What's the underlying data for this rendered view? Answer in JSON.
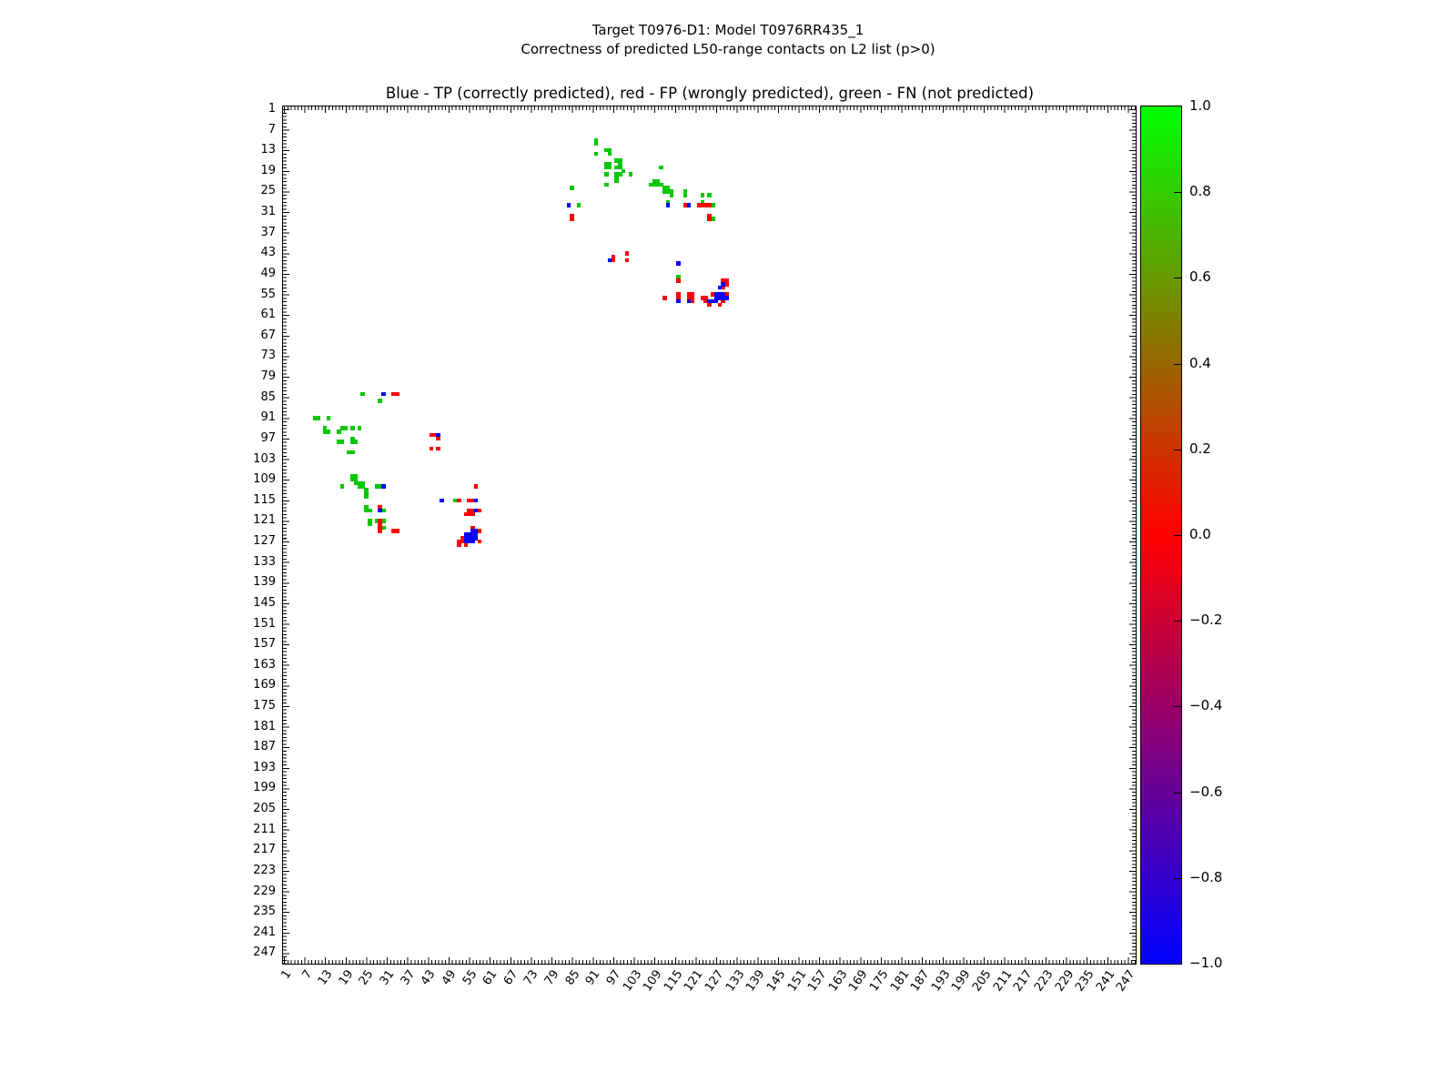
{
  "title_line1": "Target T0976-D1: Model T0976RR435_1",
  "title_line2": "Correctness of predicted L50-range contacts on L2 list (p>0)",
  "axes_title": "Blue - TP (correctly predicted), red - FP (wrongly predicted), green - FN (not predicted)",
  "colors": {
    "TP": "#0000ff",
    "FP": "#ff0000",
    "FN": "#00c800"
  },
  "chart_data": {
    "type": "scatter",
    "description": "Residue-residue contact map; squares mark predicted/native contacts by correctness class",
    "x_range": [
      1,
      250
    ],
    "y_range": [
      1,
      250
    ],
    "y_axis_inverted": true,
    "grid": false,
    "x_ticks": [
      1,
      7,
      13,
      19,
      25,
      31,
      37,
      43,
      49,
      55,
      61,
      67,
      73,
      79,
      85,
      91,
      97,
      103,
      109,
      115,
      121,
      127,
      133,
      139,
      145,
      151,
      157,
      163,
      169,
      175,
      181,
      187,
      193,
      199,
      205,
      211,
      217,
      223,
      229,
      235,
      241,
      247
    ],
    "y_ticks": [
      1,
      7,
      13,
      19,
      25,
      31,
      37,
      43,
      49,
      55,
      61,
      67,
      73,
      79,
      85,
      91,
      97,
      103,
      109,
      115,
      121,
      127,
      133,
      139,
      145,
      151,
      157,
      163,
      169,
      175,
      181,
      187,
      193,
      199,
      205,
      211,
      217,
      223,
      229,
      235,
      241,
      247
    ],
    "colorbar": {
      "labels": [
        "1.0",
        "0.8",
        "0.6",
        "0.4",
        "0.2",
        "0.0",
        "−0.2",
        "−0.4",
        "−0.6",
        "−0.8",
        "−1.0"
      ],
      "top_value": 1.0,
      "bottom_value": -1.0,
      "top_color": "#00ff00",
      "mid_color": "#ff0000",
      "bottom_color": "#0000ff"
    },
    "series": [
      {
        "name": "FN",
        "label": "green - FN (not predicted)",
        "points": [
          [
            92,
            10
          ],
          [
            92,
            11
          ],
          [
            92,
            14
          ],
          [
            95,
            13
          ],
          [
            96,
            13
          ],
          [
            96,
            14
          ],
          [
            98,
            16
          ],
          [
            99,
            16
          ],
          [
            95,
            17
          ],
          [
            96,
            17
          ],
          [
            99,
            17
          ],
          [
            95,
            18
          ],
          [
            96,
            18
          ],
          [
            98,
            18
          ],
          [
            99,
            18
          ],
          [
            100,
            19
          ],
          [
            95,
            20
          ],
          [
            98,
            20
          ],
          [
            99,
            20
          ],
          [
            102,
            20
          ],
          [
            98,
            21
          ],
          [
            98,
            22
          ],
          [
            95,
            23
          ],
          [
            85,
            24
          ],
          [
            87,
            29
          ],
          [
            111,
            18
          ],
          [
            109,
            22
          ],
          [
            110,
            22
          ],
          [
            108,
            23
          ],
          [
            109,
            23
          ],
          [
            110,
            23
          ],
          [
            111,
            23
          ],
          [
            112,
            24
          ],
          [
            113,
            24
          ],
          [
            112,
            25
          ],
          [
            113,
            25
          ],
          [
            114,
            25
          ],
          [
            118,
            25
          ],
          [
            114,
            26
          ],
          [
            118,
            26
          ],
          [
            123,
            26
          ],
          [
            125,
            26
          ],
          [
            113,
            28
          ],
          [
            123,
            28
          ],
          [
            126,
            29
          ],
          [
            126,
            33
          ],
          [
            116,
            50
          ],
          [
            24,
            84
          ],
          [
            29,
            86
          ],
          [
            10,
            91
          ],
          [
            11,
            91
          ],
          [
            14,
            91
          ],
          [
            13,
            94
          ],
          [
            18,
            94
          ],
          [
            19,
            94
          ],
          [
            21,
            94
          ],
          [
            23,
            94
          ],
          [
            13,
            95
          ],
          [
            14,
            95
          ],
          [
            17,
            95
          ],
          [
            21,
            97
          ],
          [
            17,
            98
          ],
          [
            18,
            98
          ],
          [
            21,
            98
          ],
          [
            22,
            98
          ],
          [
            20,
            101
          ],
          [
            21,
            101
          ],
          [
            21,
            108
          ],
          [
            22,
            108
          ],
          [
            21,
            109
          ],
          [
            22,
            109
          ],
          [
            22,
            110
          ],
          [
            23,
            110
          ],
          [
            24,
            110
          ],
          [
            18,
            111
          ],
          [
            23,
            111
          ],
          [
            24,
            111
          ],
          [
            28,
            111
          ],
          [
            29,
            111
          ],
          [
            25,
            112
          ],
          [
            25,
            113
          ],
          [
            25,
            114
          ],
          [
            51,
            115
          ],
          [
            25,
            117
          ],
          [
            25,
            118
          ],
          [
            26,
            118
          ],
          [
            30,
            118
          ],
          [
            26,
            121
          ],
          [
            28,
            121
          ],
          [
            30,
            121
          ],
          [
            26,
            122
          ],
          [
            30,
            123
          ]
        ]
      },
      {
        "name": "FP",
        "label": "red - FP (wrongly predicted)",
        "points": [
          [
            85,
            32
          ],
          [
            85,
            33
          ],
          [
            118,
            29
          ],
          [
            122,
            29
          ],
          [
            123,
            29
          ],
          [
            124,
            29
          ],
          [
            125,
            29
          ],
          [
            125,
            32
          ],
          [
            125,
            33
          ],
          [
            97,
            44
          ],
          [
            97,
            45
          ],
          [
            101,
            43
          ],
          [
            101,
            45
          ],
          [
            116,
            51
          ],
          [
            129,
            51
          ],
          [
            130,
            51
          ],
          [
            130,
            52
          ],
          [
            129,
            53
          ],
          [
            116,
            55
          ],
          [
            119,
            55
          ],
          [
            120,
            55
          ],
          [
            126,
            55
          ],
          [
            130,
            55
          ],
          [
            112,
            56
          ],
          [
            116,
            56
          ],
          [
            119,
            56
          ],
          [
            120,
            56
          ],
          [
            123,
            56
          ],
          [
            124,
            56
          ],
          [
            120,
            57
          ],
          [
            124,
            57
          ],
          [
            129,
            57
          ],
          [
            125,
            58
          ],
          [
            128,
            58
          ],
          [
            33,
            84
          ],
          [
            34,
            84
          ],
          [
            44,
            96
          ],
          [
            45,
            96
          ],
          [
            46,
            97
          ],
          [
            44,
            100
          ],
          [
            46,
            100
          ],
          [
            57,
            111
          ],
          [
            52,
            115
          ],
          [
            55,
            115
          ],
          [
            56,
            115
          ],
          [
            29,
            117
          ],
          [
            55,
            118
          ],
          [
            56,
            118
          ],
          [
            58,
            118
          ],
          [
            54,
            119
          ],
          [
            55,
            119
          ],
          [
            56,
            119
          ],
          [
            29,
            121
          ],
          [
            29,
            122
          ],
          [
            56,
            123
          ],
          [
            29,
            123
          ],
          [
            29,
            124
          ],
          [
            33,
            124
          ],
          [
            34,
            124
          ],
          [
            58,
            124
          ],
          [
            53,
            126
          ],
          [
            52,
            127
          ],
          [
            53,
            127
          ],
          [
            58,
            127
          ],
          [
            52,
            128
          ],
          [
            54,
            128
          ]
        ]
      },
      {
        "name": "TP",
        "label": "Blue - TP (correctly predicted)",
        "points": [
          [
            84,
            29
          ],
          [
            113,
            29
          ],
          [
            119,
            29
          ],
          [
            96,
            45
          ],
          [
            116,
            46
          ],
          [
            129,
            52
          ],
          [
            128,
            53
          ],
          [
            127,
            55
          ],
          [
            128,
            55
          ],
          [
            129,
            55
          ],
          [
            127,
            56
          ],
          [
            128,
            56
          ],
          [
            129,
            56
          ],
          [
            130,
            56
          ],
          [
            116,
            57
          ],
          [
            119,
            57
          ],
          [
            125,
            57
          ],
          [
            126,
            57
          ],
          [
            127,
            57
          ],
          [
            30,
            84
          ],
          [
            46,
            96
          ],
          [
            30,
            111
          ],
          [
            47,
            115
          ],
          [
            57,
            115
          ],
          [
            29,
            118
          ],
          [
            57,
            118
          ],
          [
            56,
            124
          ],
          [
            57,
            124
          ],
          [
            54,
            125
          ],
          [
            55,
            125
          ],
          [
            56,
            125
          ],
          [
            57,
            125
          ],
          [
            54,
            126
          ],
          [
            55,
            126
          ],
          [
            56,
            126
          ],
          [
            57,
            126
          ],
          [
            54,
            127
          ],
          [
            55,
            127
          ],
          [
            56,
            127
          ]
        ]
      }
    ]
  }
}
